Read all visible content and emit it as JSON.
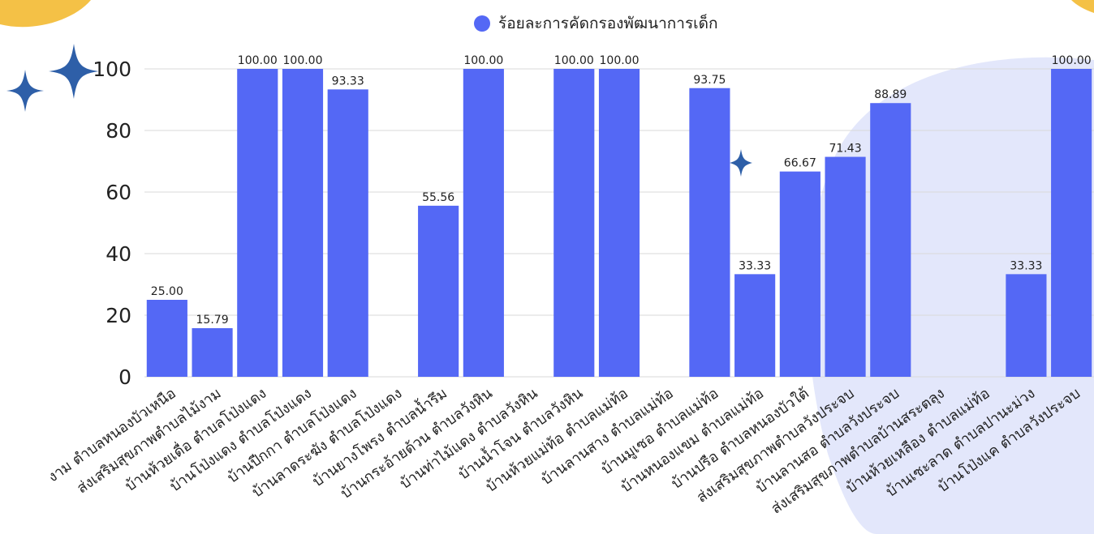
{
  "chart_data": {
    "type": "bar",
    "title": "",
    "xlabel": "",
    "ylabel": "",
    "ylim": [
      0,
      100
    ],
    "yticks": [
      0,
      20,
      40,
      60,
      80,
      100
    ],
    "grid": true,
    "legend_position": "top-center",
    "categories": [
      "งาม ตำบลหนองบัวเหนือ",
      "ส่งเสริมสุขภาพตำบลไม้งาม",
      "บ้านห้วยเดื่อ ตำบลโป่งแดง",
      "บ้านโป่งแดง ตำบลโป่งแดง",
      "บ้านปีกกา ตำบลโป่งแดง",
      "บ้านลาดระฆัง ตำบลโป่งแดง",
      "บ้านยางโพรง ตำบลน้ำรึม",
      "บ้านกระอ้ายด้วน ตำบลวังหิน",
      "บ้านท่าไม้แดง ตำบลวังหิน",
      "บ้านน้ำโจน ตำบลวังหิน",
      "บ้านห้วยแม่ท้อ ตำบลแม่ท้อ",
      "บ้านลานสาง ตำบลแม่ท้อ",
      "บ้านมูเซอ ตำบลแม่ท้อ",
      "บ้านหนองแขม ตำบลแม่ท้อ",
      "บ้านปรือ ตำบลหนองบัวใต้",
      "ส่งเสริมสุขภาพตำบลวังประจบ",
      "บ้านลานสอ ตำบลวังประจบ",
      "ส่งเสริมสุขภาพตำบลบ้านสระตลุง",
      "บ้านห้วยเหลือง ตำบลแม่ท้อ",
      "บ้านเซะลาด ตำบลปานะม่วง",
      "บ้านโป่งแค ตำบลวังประจบ"
    ],
    "series": [
      {
        "name": "ร้อยละการคัดกรองพัฒนาการเด็ก",
        "color": "#5468f5",
        "values": [
          25.0,
          15.79,
          100.0,
          100.0,
          93.33,
          null,
          55.56,
          100.0,
          null,
          100.0,
          100.0,
          null,
          93.75,
          33.33,
          66.67,
          71.43,
          88.89,
          null,
          null,
          33.33,
          100.0
        ],
        "labels": [
          "25.00",
          "15.79",
          "100.00",
          "100.00",
          "93.33",
          "",
          "55.56",
          "100.00",
          "",
          "100.00",
          "100.00",
          "",
          "93.75",
          "33.33",
          "66.67",
          "71.43",
          "88.89",
          "",
          "",
          "33.33",
          "100.00"
        ]
      }
    ]
  },
  "colors": {
    "bar": "#5468f5",
    "star": "#2e5fa8",
    "corner": "#f4c146",
    "bg_blob": "#e3e7fb",
    "grid": "#d9d9d9"
  },
  "icons": [
    "sparkle-star-icon",
    "legend-dot-icon"
  ]
}
